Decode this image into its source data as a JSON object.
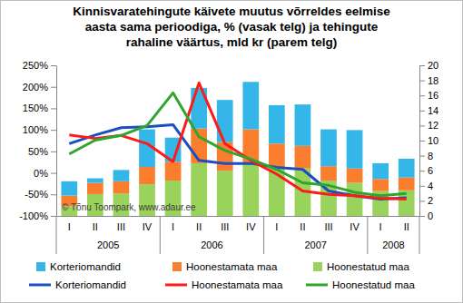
{
  "chart_data": {
    "type": "bar",
    "title": [
      "Kinnisvaratehingute käivete muutus võrreldes eelmise",
      "aasta sama perioodiga, % (vasak telg) ja tehingute",
      "rahaline väärtus, mld kr (parem telg)"
    ],
    "annotations": [
      "© Tõnu Toompark, www.adaur.ee"
    ],
    "categories": [
      "I",
      "II",
      "III",
      "IV",
      "I",
      "II",
      "III",
      "IV",
      "I",
      "II",
      "III",
      "IV",
      "I",
      "II"
    ],
    "groups": [
      "2005",
      "2005",
      "2005",
      "2005",
      "2006",
      "2006",
      "2006",
      "2006",
      "2007",
      "2007",
      "2007",
      "2007",
      "2008",
      "2008"
    ],
    "stacked": true,
    "grid": false,
    "legend": "bottom",
    "ylim": [
      -100,
      250
    ],
    "yticks": [
      {
        "value": -100,
        "label": "-100%"
      },
      {
        "value": -50,
        "label": "-50%"
      },
      {
        "value": 0,
        "label": "0%"
      },
      {
        "value": 50,
        "label": "50%"
      },
      {
        "value": 100,
        "label": "100%"
      },
      {
        "value": 150,
        "label": "150%"
      },
      {
        "value": 200,
        "label": "200%"
      },
      {
        "value": 250,
        "label": "250%"
      }
    ],
    "y2lim": [
      0,
      20
    ],
    "y2ticks": [
      0,
      2,
      4,
      6,
      8,
      10,
      12,
      14,
      16,
      18,
      20
    ],
    "series": [
      {
        "name": "Korteriomandid",
        "type": "bar",
        "axis": "y2",
        "color": "#35b6e9",
        "values": [
          1.9,
          0.6,
          1.5,
          5.0,
          3.2,
          5.4,
          5.6,
          6.3,
          5.1,
          5.5,
          4.9,
          5.1,
          2.1,
          2.5
        ]
      },
      {
        "name": "Hoonestamata maa",
        "type": "bar",
        "axis": "y2",
        "color": "#fb7d2e",
        "values": [
          1.4,
          1.5,
          1.6,
          2.3,
          2.5,
          4.6,
          3.8,
          4.4,
          3.1,
          3.0,
          1.9,
          1.9,
          1.6,
          1.7
        ]
      },
      {
        "name": "Hoonestatud maa",
        "type": "bar",
        "axis": "y2",
        "color": "#99d35b",
        "values": [
          1.3,
          2.9,
          3.0,
          4.2,
          4.7,
          7.0,
          6.0,
          7.1,
          6.5,
          6.3,
          4.7,
          4.4,
          3.3,
          3.4
        ]
      },
      {
        "name": "Korteriomandid",
        "type": "line",
        "color": "#1c4ec0",
        "marker": "none",
        "values": [
          68,
          88,
          105,
          107,
          112,
          29,
          22,
          22,
          13,
          8,
          -42,
          -53,
          -61,
          -58
        ]
      },
      {
        "name": "Hoonestamata maa",
        "type": "line",
        "color": "#ff1a1a",
        "marker": "none",
        "values": [
          88,
          80,
          87,
          68,
          26,
          209,
          68,
          29,
          -3,
          -42,
          -50,
          -53,
          -59,
          -61
        ]
      },
      {
        "name": "Hoonestatud maa",
        "type": "line",
        "color": "#2ea52e",
        "marker": "none",
        "values": [
          44,
          76,
          87,
          110,
          186,
          84,
          52,
          32,
          8,
          -23,
          -29,
          -45,
          -53,
          -48
        ]
      }
    ]
  }
}
